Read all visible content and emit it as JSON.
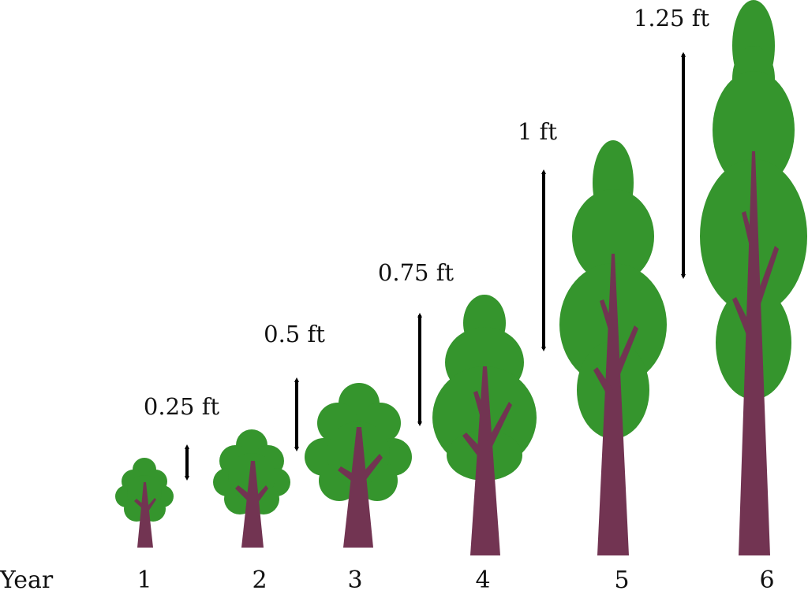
{
  "colors": {
    "foliage": "#35952d",
    "trunk": "#723452",
    "arrow": "#000000",
    "text": "#111111"
  },
  "axis_label": "Year",
  "years": [
    {
      "year": "1",
      "growth": "0.25 ft"
    },
    {
      "year": "2",
      "growth": "0.5 ft"
    },
    {
      "year": "3",
      "growth": "0.75 ft"
    },
    {
      "year": "4",
      "growth": "1 ft"
    },
    {
      "year": "5",
      "growth": "1.25 ft"
    },
    {
      "year": "6",
      "growth": ""
    }
  ]
}
